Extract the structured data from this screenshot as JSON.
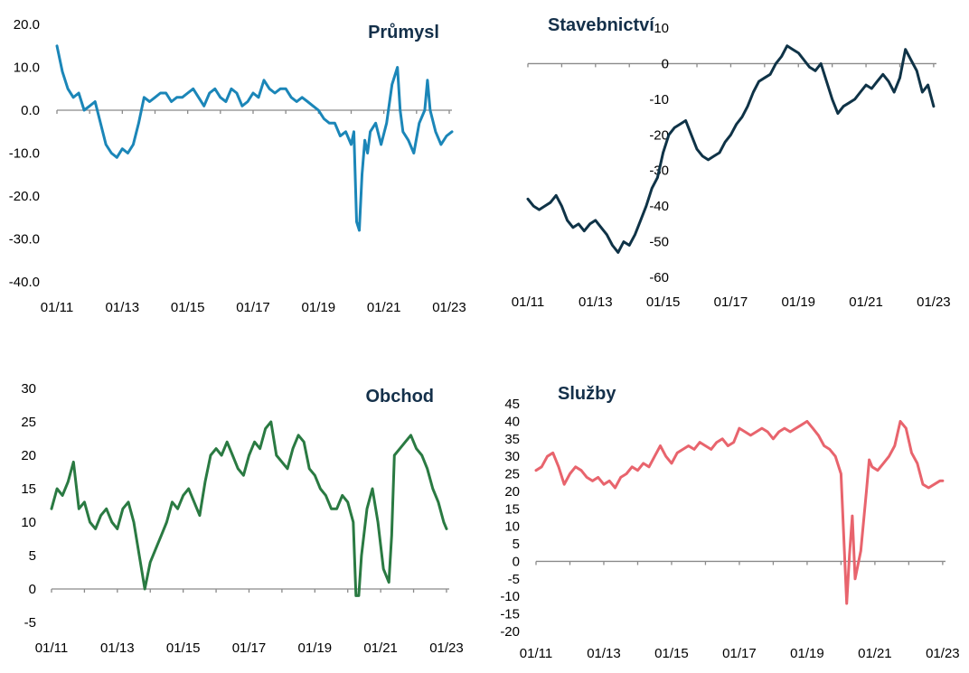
{
  "chart_data": [
    {
      "id": "prumysl",
      "type": "line",
      "title": "Průmysl",
      "color": "#1b86b8",
      "ylim": [
        -40,
        20
      ],
      "yticks": [
        20,
        10,
        0,
        -10,
        -20,
        -30,
        -40
      ],
      "ytick_labels": [
        "20.0",
        "10.0",
        "0.0",
        "-10.0",
        "-20.0",
        "-30.0",
        "-40.0"
      ],
      "xticks": [
        "01/11",
        "01/13",
        "01/15",
        "01/17",
        "01/19",
        "01/21",
        "01/23"
      ],
      "xlim": [
        "2011-01",
        "2023-02"
      ],
      "grid": false,
      "series": [
        {
          "x": [
            "2011-01",
            "2011-03",
            "2011-05",
            "2011-07",
            "2011-09",
            "2011-11",
            "2012-01",
            "2012-03",
            "2012-05",
            "2012-07",
            "2012-09",
            "2012-11",
            "2013-01",
            "2013-03",
            "2013-05",
            "2013-07",
            "2013-09",
            "2013-11",
            "2014-01",
            "2014-03",
            "2014-05",
            "2014-07",
            "2014-09",
            "2014-11",
            "2015-01",
            "2015-03",
            "2015-05",
            "2015-07",
            "2015-09",
            "2015-11",
            "2016-01",
            "2016-03",
            "2016-05",
            "2016-07",
            "2016-09",
            "2016-11",
            "2017-01",
            "2017-03",
            "2017-05",
            "2017-07",
            "2017-09",
            "2017-11",
            "2018-01",
            "2018-03",
            "2018-05",
            "2018-07",
            "2018-09",
            "2018-11",
            "2019-01",
            "2019-03",
            "2019-05",
            "2019-07",
            "2019-09",
            "2019-11",
            "2020-01",
            "2020-02",
            "2020-03",
            "2020-04",
            "2020-05",
            "2020-06",
            "2020-07",
            "2020-08",
            "2020-10",
            "2020-12",
            "2021-02",
            "2021-04",
            "2021-06",
            "2021-07",
            "2021-08",
            "2021-10",
            "2021-12",
            "2022-02",
            "2022-04",
            "2022-05",
            "2022-06",
            "2022-08",
            "2022-10",
            "2022-12",
            "2023-02"
          ],
          "y": [
            15,
            9,
            5,
            3,
            4,
            0,
            1,
            2,
            -3,
            -8,
            -10,
            -11,
            -9,
            -10,
            -8,
            -3,
            3,
            2,
            3,
            4,
            4,
            2,
            3,
            3,
            4,
            5,
            3,
            1,
            4,
            5,
            3,
            2,
            5,
            4,
            1,
            2,
            4,
            3,
            7,
            5,
            4,
            5,
            5,
            3,
            2,
            3,
            2,
            1,
            0,
            -2,
            -3,
            -3,
            -6,
            -5,
            -8,
            -5,
            -26,
            -28,
            -15,
            -7,
            -10,
            -5,
            -3,
            -8,
            -3,
            6,
            10,
            0,
            -5,
            -7,
            -10,
            -3,
            0,
            7,
            0,
            -5,
            -8,
            -6,
            -5
          ]
        }
      ]
    },
    {
      "id": "stavebnictvi",
      "type": "line",
      "title": "Stavebnictví",
      "color": "#0f3347",
      "ylim": [
        -60,
        10
      ],
      "yticks": [
        10,
        0,
        -10,
        -20,
        -30,
        -40,
        -50,
        -60
      ],
      "ytick_labels": [
        "10",
        "0",
        "-10",
        "-20",
        "-30",
        "-40",
        "-50",
        "-60"
      ],
      "xticks": [
        "01/11",
        "01/13",
        "01/15",
        "01/17",
        "01/19",
        "01/21",
        "01/23"
      ],
      "xlim": [
        "2011-01",
        "2023-02"
      ],
      "grid": false,
      "series": [
        {
          "x": [
            "2011-01",
            "2011-03",
            "2011-05",
            "2011-07",
            "2011-09",
            "2011-11",
            "2012-01",
            "2012-03",
            "2012-05",
            "2012-07",
            "2012-09",
            "2012-11",
            "2013-01",
            "2013-03",
            "2013-05",
            "2013-07",
            "2013-09",
            "2013-11",
            "2014-01",
            "2014-03",
            "2014-05",
            "2014-07",
            "2014-09",
            "2014-11",
            "2015-01",
            "2015-03",
            "2015-05",
            "2015-07",
            "2015-09",
            "2015-11",
            "2016-01",
            "2016-03",
            "2016-05",
            "2016-07",
            "2016-09",
            "2016-11",
            "2017-01",
            "2017-03",
            "2017-05",
            "2017-07",
            "2017-09",
            "2017-11",
            "2018-01",
            "2018-03",
            "2018-05",
            "2018-07",
            "2018-09",
            "2018-11",
            "2019-01",
            "2019-03",
            "2019-05",
            "2019-07",
            "2019-09",
            "2019-11",
            "2020-01",
            "2020-03",
            "2020-05",
            "2020-07",
            "2020-09",
            "2020-11",
            "2021-01",
            "2021-03",
            "2021-05",
            "2021-07",
            "2021-09",
            "2021-11",
            "2022-01",
            "2022-03",
            "2022-05",
            "2022-07",
            "2022-09",
            "2022-11",
            "2023-01"
          ],
          "y": [
            -38,
            -40,
            -41,
            -40,
            -39,
            -37,
            -40,
            -44,
            -46,
            -45,
            -47,
            -45,
            -44,
            -46,
            -48,
            -51,
            -53,
            -50,
            -51,
            -48,
            -44,
            -40,
            -35,
            -32,
            -25,
            -20,
            -18,
            -17,
            -16,
            -20,
            -24,
            -26,
            -27,
            -26,
            -25,
            -22,
            -20,
            -17,
            -15,
            -12,
            -8,
            -5,
            -4,
            -3,
            0,
            2,
            5,
            4,
            3,
            1,
            -1,
            -2,
            0,
            -5,
            -10,
            -14,
            -12,
            -11,
            -10,
            -8,
            -6,
            -7,
            -5,
            -3,
            -5,
            -8,
            -4,
            4,
            1,
            -2,
            -8,
            -6,
            -12
          ]
        }
      ]
    },
    {
      "id": "obchod",
      "type": "line",
      "title": "Obchod",
      "color": "#2a7a42",
      "ylim": [
        -5,
        30
      ],
      "yticks": [
        30,
        25,
        20,
        15,
        10,
        5,
        0,
        -5
      ],
      "ytick_labels": [
        "30",
        "25",
        "20",
        "15",
        "10",
        "5",
        "0",
        "-5"
      ],
      "xticks": [
        "01/11",
        "01/13",
        "01/15",
        "01/17",
        "01/19",
        "01/21",
        "01/23"
      ],
      "xlim": [
        "2011-01",
        "2023-02"
      ],
      "grid": false,
      "series": [
        {
          "x": [
            "2011-01",
            "2011-03",
            "2011-05",
            "2011-07",
            "2011-09",
            "2011-11",
            "2012-01",
            "2012-03",
            "2012-05",
            "2012-07",
            "2012-09",
            "2012-11",
            "2013-01",
            "2013-03",
            "2013-05",
            "2013-07",
            "2013-09",
            "2013-11",
            "2014-01",
            "2014-03",
            "2014-05",
            "2014-07",
            "2014-09",
            "2014-11",
            "2015-01",
            "2015-03",
            "2015-05",
            "2015-07",
            "2015-09",
            "2015-11",
            "2016-01",
            "2016-03",
            "2016-05",
            "2016-07",
            "2016-09",
            "2016-11",
            "2017-01",
            "2017-03",
            "2017-05",
            "2017-07",
            "2017-09",
            "2017-11",
            "2018-01",
            "2018-03",
            "2018-05",
            "2018-07",
            "2018-09",
            "2018-11",
            "2019-01",
            "2019-03",
            "2019-05",
            "2019-07",
            "2019-09",
            "2019-11",
            "2020-01",
            "2020-03",
            "2020-04",
            "2020-05",
            "2020-06",
            "2020-08",
            "2020-10",
            "2020-12",
            "2021-02",
            "2021-04",
            "2021-05",
            "2021-06",
            "2021-08",
            "2021-10",
            "2021-12",
            "2022-02",
            "2022-04",
            "2022-06",
            "2022-08",
            "2022-10",
            "2022-12",
            "2023-01"
          ],
          "y": [
            12,
            15,
            14,
            16,
            19,
            12,
            13,
            10,
            9,
            11,
            12,
            10,
            9,
            12,
            13,
            10,
            5,
            0,
            4,
            6,
            8,
            10,
            13,
            12,
            14,
            15,
            13,
            11,
            16,
            20,
            21,
            20,
            22,
            20,
            18,
            17,
            20,
            22,
            21,
            24,
            25,
            20,
            19,
            18,
            21,
            23,
            22,
            18,
            17,
            15,
            14,
            12,
            12,
            14,
            13,
            10,
            -1,
            -1,
            5,
            12,
            15,
            10,
            3,
            1,
            8,
            20,
            21,
            22,
            23,
            21,
            20,
            18,
            15,
            13,
            10,
            9
          ]
        }
      ]
    },
    {
      "id": "sluzby",
      "type": "line",
      "title": "Služby",
      "color": "#e8646d",
      "ylim": [
        -20,
        45
      ],
      "yticks": [
        45,
        40,
        35,
        30,
        25,
        20,
        15,
        10,
        5,
        0,
        -5,
        -10,
        -15,
        -20
      ],
      "ytick_labels": [
        "45",
        "40",
        "35",
        "30",
        "25",
        "20",
        "15",
        "10",
        "5",
        "0",
        "-5",
        "-10",
        "-15",
        "-20"
      ],
      "xticks": [
        "01/11",
        "01/13",
        "01/15",
        "01/17",
        "01/19",
        "01/21",
        "01/23"
      ],
      "xlim": [
        "2011-01",
        "2023-02"
      ],
      "grid": false,
      "series": [
        {
          "x": [
            "2011-01",
            "2011-03",
            "2011-05",
            "2011-07",
            "2011-09",
            "2011-11",
            "2012-01",
            "2012-03",
            "2012-05",
            "2012-07",
            "2012-09",
            "2012-11",
            "2013-01",
            "2013-03",
            "2013-05",
            "2013-07",
            "2013-09",
            "2013-11",
            "2014-01",
            "2014-03",
            "2014-05",
            "2014-07",
            "2014-09",
            "2014-11",
            "2015-01",
            "2015-03",
            "2015-05",
            "2015-07",
            "2015-09",
            "2015-11",
            "2016-01",
            "2016-03",
            "2016-05",
            "2016-07",
            "2016-09",
            "2016-11",
            "2017-01",
            "2017-03",
            "2017-05",
            "2017-07",
            "2017-09",
            "2017-11",
            "2018-01",
            "2018-03",
            "2018-05",
            "2018-07",
            "2018-09",
            "2018-11",
            "2019-01",
            "2019-03",
            "2019-05",
            "2019-07",
            "2019-09",
            "2019-11",
            "2020-01",
            "2020-03",
            "2020-04",
            "2020-05",
            "2020-06",
            "2020-08",
            "2020-10",
            "2020-11",
            "2020-12",
            "2021-02",
            "2021-04",
            "2021-06",
            "2021-08",
            "2021-10",
            "2021-12",
            "2022-02",
            "2022-04",
            "2022-06",
            "2022-08",
            "2022-10",
            "2022-12",
            "2023-01"
          ],
          "y": [
            26,
            27,
            30,
            31,
            27,
            22,
            25,
            27,
            26,
            24,
            23,
            24,
            22,
            23,
            21,
            24,
            25,
            27,
            26,
            28,
            27,
            30,
            33,
            30,
            28,
            31,
            32,
            33,
            32,
            34,
            33,
            32,
            34,
            35,
            33,
            34,
            38,
            37,
            36,
            37,
            38,
            37,
            35,
            37,
            38,
            37,
            38,
            39,
            40,
            38,
            36,
            33,
            32,
            30,
            25,
            -12,
            2,
            13,
            -5,
            3,
            20,
            29,
            27,
            26,
            28,
            30,
            33,
            40,
            38,
            31,
            28,
            22,
            21,
            22,
            23,
            23
          ]
        }
      ]
    }
  ]
}
